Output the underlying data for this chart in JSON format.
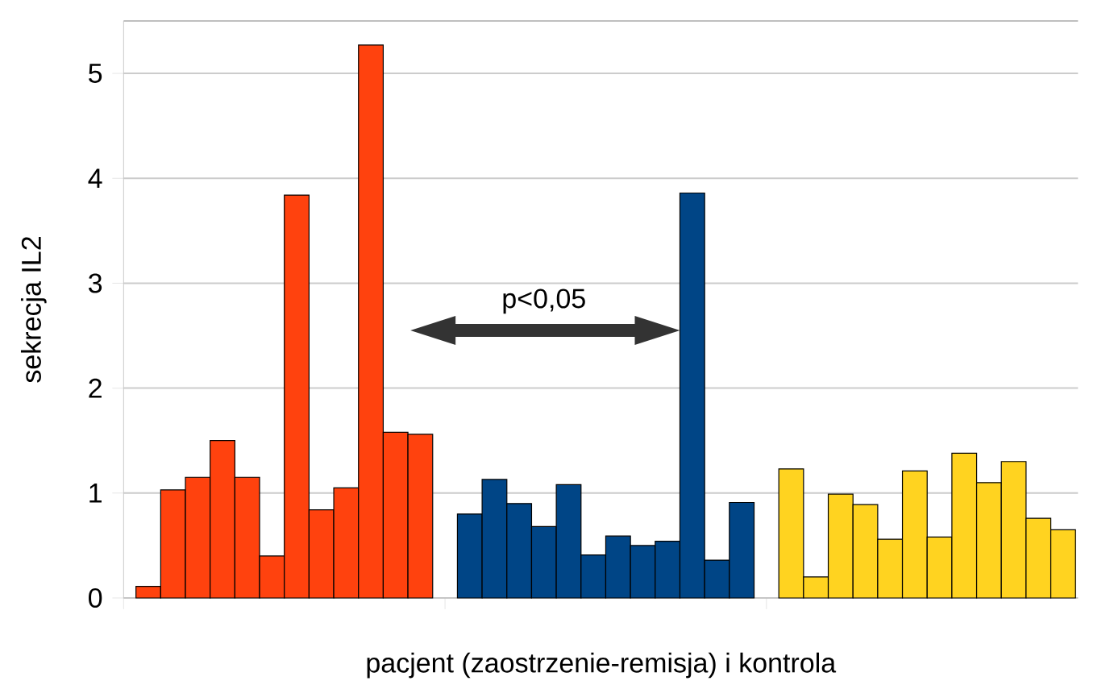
{
  "chart_data": {
    "type": "bar",
    "xlabel": "pacjent (zaostrzenie-remisja) i kontrola",
    "ylabel": "sekrecja IL2",
    "categories": [
      null,
      null,
      null,
      null,
      null,
      null,
      null,
      null,
      null,
      null,
      null,
      null,
      null,
      null,
      null,
      null,
      null,
      null,
      null,
      null,
      null,
      null,
      null,
      null,
      null,
      null,
      null,
      null,
      null,
      null,
      null,
      null,
      null,
      null,
      null,
      null,
      null,
      null
    ],
    "series": [
      {
        "color": "#ff420e",
        "values": [
          0.11,
          1.03,
          1.15,
          1.5,
          1.15,
          0.4,
          3.84,
          0.84,
          1.05,
          5.27,
          1.58,
          1.56,
          null,
          null,
          null,
          null,
          null,
          null,
          null,
          null,
          null,
          null,
          null,
          null,
          null,
          null,
          null,
          null,
          null,
          null,
          null,
          null,
          null,
          null,
          null,
          null,
          null,
          null
        ]
      },
      {
        "color": "#004586",
        "values": [
          null,
          null,
          null,
          null,
          null,
          null,
          null,
          null,
          null,
          null,
          null,
          null,
          null,
          0.8,
          1.13,
          0.9,
          0.68,
          1.08,
          0.41,
          0.59,
          0.5,
          0.54,
          3.86,
          0.36,
          0.91,
          null,
          null,
          null,
          null,
          null,
          null,
          null,
          null,
          null,
          null,
          null,
          null,
          null
        ]
      },
      {
        "color": "#ffd320",
        "values": [
          null,
          null,
          null,
          null,
          null,
          null,
          null,
          null,
          null,
          null,
          null,
          null,
          null,
          null,
          null,
          null,
          null,
          null,
          null,
          null,
          null,
          null,
          null,
          null,
          null,
          null,
          1.23,
          0.2,
          0.99,
          0.89,
          0.56,
          1.21,
          0.58,
          1.38,
          1.1,
          1.3,
          0.76,
          0.65
        ]
      }
    ],
    "ylim": [
      0,
      5.5
    ],
    "yticks": [
      0,
      1,
      2,
      3,
      4,
      5
    ],
    "grid": "y",
    "annotations": [
      "p<0,05"
    ]
  }
}
